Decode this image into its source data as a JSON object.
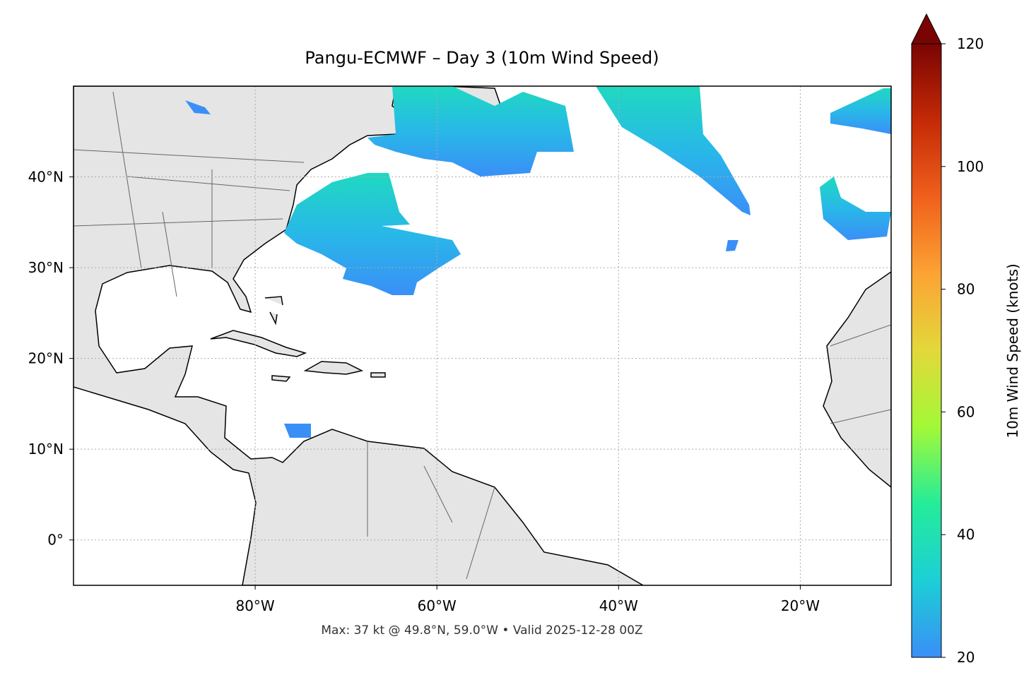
{
  "chart_data": {
    "type": "map",
    "title": "Pangu-ECMWF – Day 3 (10m Wind Speed)",
    "caption": "Max: 37 kt @ 49.8°N, 59.0°W • Valid 2025-12-28 00Z",
    "xlim": [
      -100,
      -10
    ],
    "ylim": [
      -5,
      50
    ],
    "xticks": [
      {
        "value": -80,
        "label": "80°W"
      },
      {
        "value": -60,
        "label": "60°W"
      },
      {
        "value": -40,
        "label": "40°W"
      },
      {
        "value": -20,
        "label": "20°W"
      }
    ],
    "yticks": [
      {
        "value": 0,
        "label": "0°"
      },
      {
        "value": 10,
        "label": "10°N"
      },
      {
        "value": 20,
        "label": "20°N"
      },
      {
        "value": 30,
        "label": "30°N"
      },
      {
        "value": 40,
        "label": "40°N"
      }
    ],
    "grid": true,
    "colorbar": {
      "label": "10m Wind Speed (knots)",
      "lim": [
        20,
        120
      ],
      "ticks": [
        20,
        40,
        60,
        80,
        100,
        120
      ],
      "extend": "max",
      "colors": [
        "#3a8ff7",
        "#1ccfd6",
        "#24ec9a",
        "#a2f937",
        "#e3d83a",
        "#fca334",
        "#f0601c",
        "#c42a06",
        "#7a0403"
      ]
    }
  }
}
